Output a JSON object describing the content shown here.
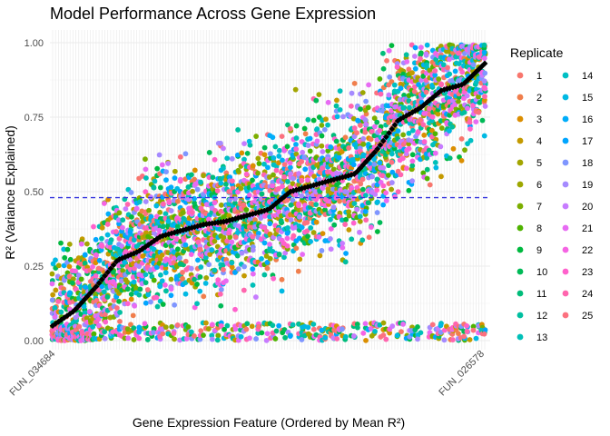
{
  "chart_data": {
    "type": "scatter",
    "title": "Model Performance Across Gene Expression",
    "xlabel": "Gene Expression Feature (Ordered by Mean R²)",
    "ylabel": "R² (Variance Explained)",
    "ylim": [
      0,
      1
    ],
    "yticks": [
      "0.00",
      "0.25",
      "0.50",
      "0.75",
      "1.00"
    ],
    "x_tick_labels_visible": [
      "FUN_034684",
      "FUN_026578"
    ],
    "n_features": 150,
    "reference_line": {
      "y": 0.48,
      "style": "dashed",
      "color": "#3333dd"
    },
    "mean_series_color": "#000000",
    "mean_curve": [
      [
        0,
        0.05
      ],
      [
        0.05,
        0.1
      ],
      [
        0.1,
        0.18
      ],
      [
        0.15,
        0.27
      ],
      [
        0.2,
        0.3
      ],
      [
        0.25,
        0.35
      ],
      [
        0.3,
        0.37
      ],
      [
        0.35,
        0.39
      ],
      [
        0.4,
        0.4
      ],
      [
        0.45,
        0.42
      ],
      [
        0.5,
        0.44
      ],
      [
        0.55,
        0.5
      ],
      [
        0.6,
        0.52
      ],
      [
        0.65,
        0.54
      ],
      [
        0.7,
        0.56
      ],
      [
        0.75,
        0.64
      ],
      [
        0.8,
        0.74
      ],
      [
        0.85,
        0.78
      ],
      [
        0.9,
        0.84
      ],
      [
        0.95,
        0.86
      ],
      [
        1,
        0.93
      ]
    ],
    "legend": {
      "title": "Replicate",
      "placement": "right",
      "entries": [
        {
          "label": "1",
          "color": "#F8766D"
        },
        {
          "label": "2",
          "color": "#F07E4C"
        },
        {
          "label": "3",
          "color": "#DB8E00"
        },
        {
          "label": "4",
          "color": "#C49A00"
        },
        {
          "label": "5",
          "color": "#A3A500"
        },
        {
          "label": "6",
          "color": "#9DA700"
        },
        {
          "label": "7",
          "color": "#7CAE00"
        },
        {
          "label": "8",
          "color": "#4FB300"
        },
        {
          "label": "9",
          "color": "#00B93F"
        },
        {
          "label": "10",
          "color": "#00BA57"
        },
        {
          "label": "11",
          "color": "#00BC7A"
        },
        {
          "label": "12",
          "color": "#00BFA0"
        },
        {
          "label": "13",
          "color": "#00C0B8"
        },
        {
          "label": "14",
          "color": "#00BFC4"
        },
        {
          "label": "15",
          "color": "#00B9E3"
        },
        {
          "label": "16",
          "color": "#00ADFA"
        },
        {
          "label": "17",
          "color": "#00A5FF"
        },
        {
          "label": "18",
          "color": "#7F96FF"
        },
        {
          "label": "19",
          "color": "#A58AFF"
        },
        {
          "label": "20",
          "color": "#C77CFF"
        },
        {
          "label": "21",
          "color": "#E76BF3"
        },
        {
          "label": "22",
          "color": "#F564E3"
        },
        {
          "label": "23",
          "color": "#FF61CC"
        },
        {
          "label": "24",
          "color": "#FF65AE"
        },
        {
          "label": "25",
          "color": "#FC717F"
        }
      ]
    }
  }
}
